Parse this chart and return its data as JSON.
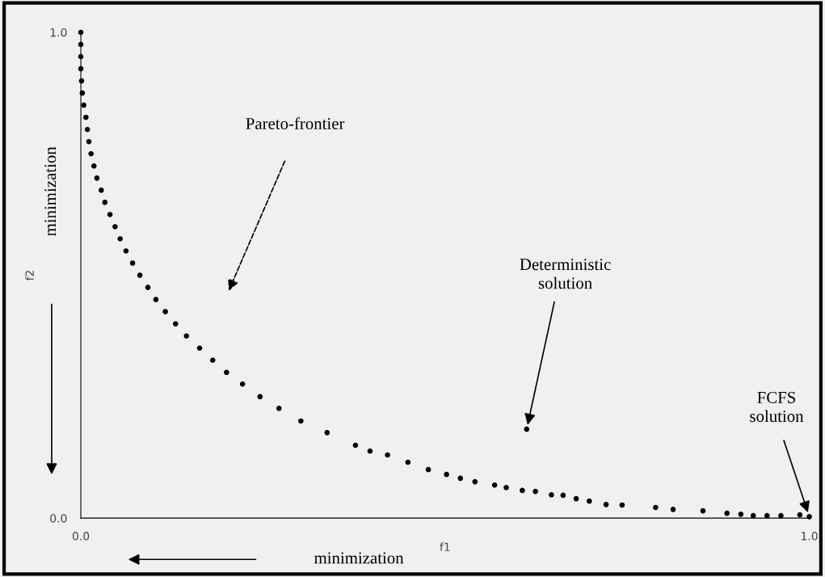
{
  "chart_data": {
    "type": "scatter",
    "xlabel": "f1",
    "ylabel": "f2",
    "xlim": [
      0,
      1.0
    ],
    "ylim": [
      0,
      1.0
    ],
    "xticks": [
      {
        "value": 0,
        "label": "0.0"
      },
      {
        "value": 1.0,
        "label": "1.0"
      }
    ],
    "yticks": [
      {
        "value": 0,
        "label": "0.0"
      },
      {
        "value": 1.0,
        "label": "1.0"
      }
    ],
    "marker": "circle",
    "grid": false,
    "series": [
      {
        "color": "#000000",
        "x": [
          0,
          0,
          0,
          0,
          0.001,
          0.002,
          0.004,
          0.007,
          0.009,
          0.011,
          0.014,
          0.018,
          0.022,
          0.028,
          0.033,
          0.04,
          0.047,
          0.054,
          0.062,
          0.071,
          0.081,
          0.092,
          0.103,
          0.116,
          0.13,
          0.145,
          0.163,
          0.181,
          0.2,
          0.222,
          0.246,
          0.272,
          0.302,
          0.338,
          0.377,
          0.397,
          0.421,
          0.449,
          0.477,
          0.502,
          0.521,
          0.541,
          0.568,
          0.584,
          0.606,
          0.624,
          0.646,
          0.662,
          0.68,
          0.698,
          0.721,
          0.743,
          0.789,
          0.813,
          0.854,
          0.887,
          0.906,
          0.923,
          0.942,
          0.961,
          0.987,
          1.0
        ],
        "values": [
          1.0,
          0.975,
          0.95,
          0.925,
          0.9,
          0.875,
          0.85,
          0.825,
          0.8,
          0.775,
          0.75,
          0.725,
          0.7,
          0.675,
          0.65,
          0.625,
          0.6,
          0.575,
          0.55,
          0.525,
          0.5,
          0.475,
          0.45,
          0.425,
          0.4,
          0.375,
          0.35,
          0.325,
          0.3,
          0.276,
          0.25,
          0.226,
          0.2,
          0.176,
          0.15,
          0.138,
          0.13,
          0.115,
          0.1,
          0.09,
          0.082,
          0.075,
          0.068,
          0.063,
          0.057,
          0.055,
          0.048,
          0.047,
          0.04,
          0.035,
          0.028,
          0.027,
          0.022,
          0.018,
          0.015,
          0.01,
          0.008,
          0.005,
          0.005,
          0.005,
          0.007,
          0.003
        ]
      },
      {
        "color": "#000000",
        "x": [
          0.612
        ],
        "values": [
          0.183
        ]
      }
    ],
    "annotations": [
      "Pareto-frontier",
      {
        "text": "Deterministic\nsolution",
        "x": 0.612,
        "y": 0.183
      },
      {
        "text": "FCFS\nsolution",
        "x": 1.0,
        "y": 0.003
      },
      "minimization",
      "minimization"
    ]
  }
}
